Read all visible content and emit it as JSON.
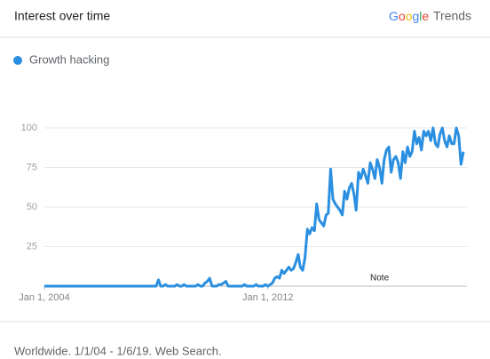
{
  "header": {
    "title": "Interest over time",
    "brand": "Google",
    "brand_product": "Trends"
  },
  "footer": "Worldwide. 1/1/04 - 1/6/19. Web Search.",
  "chart_data": {
    "type": "line",
    "xlim": [
      "2004-01-01",
      "2019-01-01"
    ],
    "xticks": [
      {
        "value": "2004-01-01",
        "label": "Jan 1, 2004"
      },
      {
        "value": "2012-01-01",
        "label": "Jan 1, 2012"
      }
    ],
    "ylim": [
      0,
      100
    ],
    "yticks": [
      25,
      50,
      75,
      100
    ],
    "grid": true,
    "annotations": [
      {
        "x": "2016-01-01",
        "text": "Note"
      }
    ],
    "x": [
      "2004-01-01",
      "2004-02-01",
      "2004-03-01",
      "2004-04-01",
      "2004-05-01",
      "2004-06-01",
      "2004-07-01",
      "2004-08-01",
      "2004-09-01",
      "2004-10-01",
      "2004-11-01",
      "2004-12-01",
      "2005-01-01",
      "2005-02-01",
      "2005-03-01",
      "2005-04-01",
      "2005-05-01",
      "2005-06-01",
      "2005-07-01",
      "2005-08-01",
      "2005-09-01",
      "2005-10-01",
      "2005-11-01",
      "2005-12-01",
      "2006-01-01",
      "2006-02-01",
      "2006-03-01",
      "2006-04-01",
      "2006-05-01",
      "2006-06-01",
      "2006-07-01",
      "2006-08-01",
      "2006-09-01",
      "2006-10-01",
      "2006-11-01",
      "2006-12-01",
      "2007-01-01",
      "2007-02-01",
      "2007-03-01",
      "2007-04-01",
      "2007-05-01",
      "2007-06-01",
      "2007-07-01",
      "2007-08-01",
      "2007-09-01",
      "2007-10-01",
      "2007-11-01",
      "2007-12-01",
      "2008-01-01",
      "2008-02-01",
      "2008-03-01",
      "2008-04-01",
      "2008-05-01",
      "2008-06-01",
      "2008-07-01",
      "2008-08-01",
      "2008-09-01",
      "2008-10-01",
      "2008-11-01",
      "2008-12-01",
      "2009-01-01",
      "2009-02-01",
      "2009-03-01",
      "2009-04-01",
      "2009-05-01",
      "2009-06-01",
      "2009-07-01",
      "2009-08-01",
      "2009-09-01",
      "2009-10-01",
      "2009-11-01",
      "2009-12-01",
      "2010-01-01",
      "2010-02-01",
      "2010-03-01",
      "2010-04-01",
      "2010-05-01",
      "2010-06-01",
      "2010-07-01",
      "2010-08-01",
      "2010-09-01",
      "2010-10-01",
      "2010-11-01",
      "2010-12-01",
      "2011-01-01",
      "2011-02-01",
      "2011-03-01",
      "2011-04-01",
      "2011-05-01",
      "2011-06-01",
      "2011-07-01",
      "2011-08-01",
      "2011-09-01",
      "2011-10-01",
      "2011-11-01",
      "2011-12-01",
      "2012-01-01",
      "2012-02-01",
      "2012-03-01",
      "2012-04-01",
      "2012-05-01",
      "2012-06-01",
      "2012-07-01",
      "2012-08-01",
      "2012-09-01",
      "2012-10-01",
      "2012-11-01",
      "2012-12-01",
      "2013-01-01",
      "2013-02-01",
      "2013-03-01",
      "2013-04-01",
      "2013-05-01",
      "2013-06-01",
      "2013-07-01",
      "2013-08-01",
      "2013-09-01",
      "2013-10-01",
      "2013-11-01",
      "2013-12-01",
      "2014-01-01",
      "2014-02-01",
      "2014-03-01",
      "2014-04-01",
      "2014-05-01",
      "2014-06-01",
      "2014-07-01",
      "2014-08-01",
      "2014-09-01",
      "2014-10-01",
      "2014-11-01",
      "2014-12-01",
      "2015-01-01",
      "2015-02-01",
      "2015-03-01",
      "2015-04-01",
      "2015-05-01",
      "2015-06-01",
      "2015-07-01",
      "2015-08-01",
      "2015-09-01",
      "2015-10-01",
      "2015-11-01",
      "2015-12-01",
      "2016-01-01",
      "2016-02-01",
      "2016-03-01",
      "2016-04-01",
      "2016-05-01",
      "2016-06-01",
      "2016-07-01",
      "2016-08-01",
      "2016-09-01",
      "2016-10-01",
      "2016-11-01",
      "2016-12-01",
      "2017-01-01",
      "2017-02-01",
      "2017-03-01",
      "2017-04-01",
      "2017-05-01",
      "2017-06-01",
      "2017-07-01",
      "2017-08-01",
      "2017-09-01",
      "2017-10-01",
      "2017-11-01",
      "2017-12-01",
      "2018-01-01",
      "2018-02-01",
      "2018-03-01",
      "2018-04-01",
      "2018-05-01",
      "2018-06-01",
      "2018-07-01",
      "2018-08-01",
      "2018-09-01",
      "2018-10-01",
      "2018-11-01",
      "2018-12-01",
      "2019-01-01"
    ],
    "series": [
      {
        "name": "Growth hacking",
        "color": "#2a8fe0",
        "values": [
          0,
          0,
          0,
          0,
          0,
          0,
          0,
          0,
          0,
          0,
          0,
          0,
          0,
          0,
          0,
          0,
          0,
          0,
          0,
          0,
          0,
          0,
          0,
          0,
          0,
          0,
          0,
          0,
          0,
          0,
          0,
          0,
          0,
          0,
          0,
          0,
          0,
          0,
          0,
          0,
          0,
          0,
          0,
          0,
          0,
          0,
          0,
          0,
          0,
          4,
          0,
          0,
          1,
          0,
          0,
          0,
          0,
          1,
          0,
          0,
          1,
          0,
          0,
          0,
          0,
          0,
          1,
          0,
          0,
          2,
          3,
          5,
          0,
          0,
          0,
          1,
          1,
          2,
          3,
          0,
          0,
          0,
          0,
          0,
          0,
          0,
          1,
          0,
          0,
          0,
          0,
          1,
          0,
          0,
          0,
          1,
          0,
          1,
          2,
          5,
          6,
          5,
          10,
          8,
          10,
          12,
          10,
          11,
          15,
          20,
          12,
          10,
          18,
          36,
          33,
          37,
          35,
          52,
          42,
          40,
          38,
          45,
          46,
          74,
          55,
          52,
          50,
          48,
          45,
          60,
          55,
          62,
          65,
          58,
          48,
          72,
          68,
          74,
          70,
          65,
          78,
          74,
          68,
          80,
          75,
          65,
          80,
          86,
          88,
          72,
          80,
          82,
          78,
          68,
          85,
          78,
          88,
          82,
          85,
          98,
          90,
          94,
          86,
          98,
          95,
          98,
          92,
          100,
          90,
          88,
          96,
          100,
          92,
          88,
          95,
          90,
          90,
          100,
          95,
          77,
          85
        ]
      }
    ]
  }
}
